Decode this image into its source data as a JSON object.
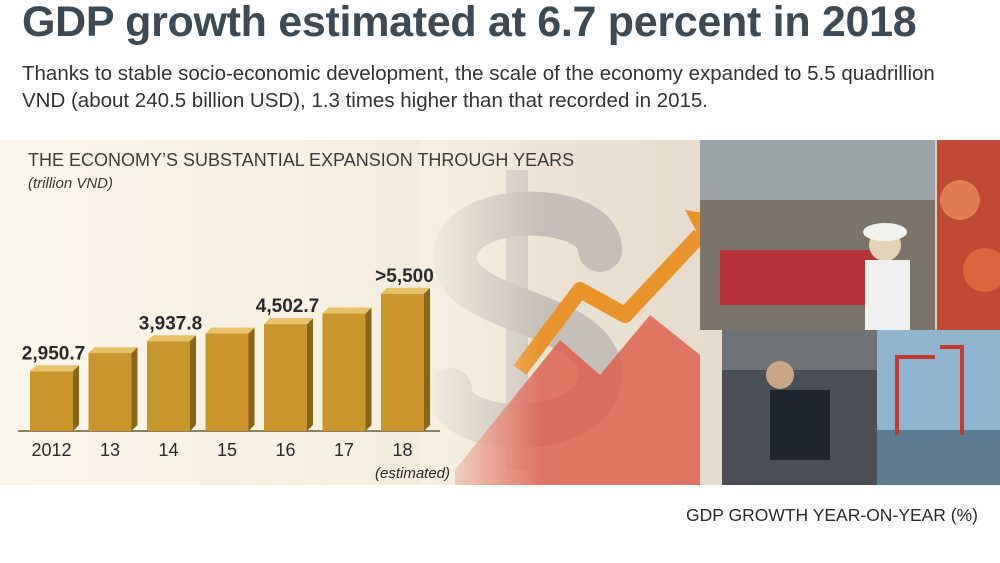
{
  "header": {
    "title": "GDP growth estimated at 6.7 percent in 2018",
    "subtitle": "Thanks to stable socio-economic development, the scale of the economy expanded to 5.5 quadrillion VND (about 240.5 billion USD), 1.3 times higher than that recorded in 2015."
  },
  "chart_data": {
    "type": "bar",
    "title": "THE ECONOMY’S SUBSTANTIAL EXPANSION THROUGH YEARS",
    "subtitle": "(trillion VND)",
    "categories": [
      "2012",
      "13",
      "14",
      "15",
      "16",
      "17",
      "18"
    ],
    "category_note": "(estimated)",
    "values": [
      2950.7,
      3550,
      3937.8,
      4190,
      4502.7,
      4850,
      5500
    ],
    "data_labels": [
      "2,950.7",
      "",
      "3,937.8",
      "",
      "4,502.7",
      "",
      ">5,500"
    ],
    "bar_color": "#c9962e",
    "bar_side_color": "#8a6418",
    "bar_top_color": "#e7c26a"
  },
  "section": {
    "gdp_growth_title": "GDP GROWTH YEAR-ON-YEAR (%)"
  },
  "colors": {
    "title": "#3d4a54",
    "arrow": "#e8942b",
    "arrow_red": "#d9483b"
  }
}
